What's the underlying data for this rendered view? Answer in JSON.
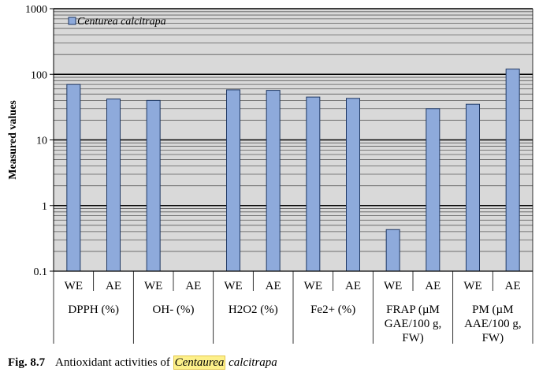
{
  "chart_data": {
    "type": "bar",
    "scale": "log",
    "ylabel": "Measured values",
    "ylim": [
      0.1,
      1000
    ],
    "yticks": [
      "0.1",
      "1",
      "10",
      "100",
      "1000"
    ],
    "grid": true,
    "legend": {
      "position": "top-left",
      "label": "Centurea calcitrapa"
    },
    "colors": {
      "bar": "#8eaadb",
      "bar_stroke": "#1f3864",
      "plot_bg": "#d9d9d9"
    },
    "groups": [
      {
        "label_lines": [
          "DPPH (%)"
        ],
        "categories": [
          "WE",
          "AE"
        ],
        "values": [
          70,
          42
        ]
      },
      {
        "label_lines": [
          "OH- (%)"
        ],
        "categories": [
          "WE",
          "AE"
        ],
        "values": [
          40,
          null
        ]
      },
      {
        "label_lines": [
          "H2O2 (%)"
        ],
        "categories": [
          "WE",
          "AE"
        ],
        "values": [
          58,
          57
        ]
      },
      {
        "label_lines": [
          "Fe2+ (%)"
        ],
        "categories": [
          "WE",
          "AE"
        ],
        "values": [
          45,
          43
        ]
      },
      {
        "label_lines": [
          "FRAP (µM",
          "GAE/100 g,",
          "FW)"
        ],
        "categories": [
          "WE",
          "AE"
        ],
        "values": [
          0.43,
          30
        ]
      },
      {
        "label_lines": [
          "PM (µM",
          "AAE/100 g,",
          "FW)"
        ],
        "categories": [
          "WE",
          "AE"
        ],
        "values": [
          35,
          120
        ]
      }
    ]
  },
  "caption": {
    "fig": "Fig. 8.7",
    "text": "Antioxidant activities of",
    "highlight": "Centaurea",
    "species": "calcitrapa"
  }
}
